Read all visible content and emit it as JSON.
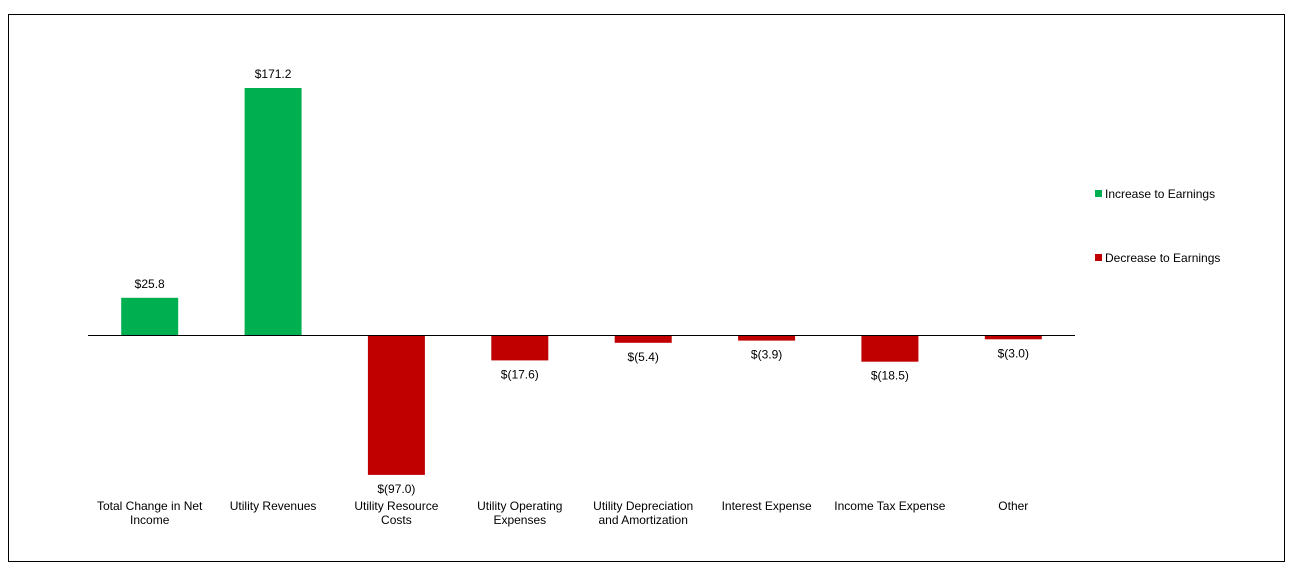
{
  "chart_data": {
    "type": "bar",
    "categories": [
      [
        "Total Change in Net",
        "Income"
      ],
      [
        "Utility Revenues"
      ],
      [
        "Utility Resource",
        "Costs"
      ],
      [
        "Utility Operating",
        "Expenses"
      ],
      [
        "Utility Depreciation",
        "and Amortization"
      ],
      [
        "Interest Expense"
      ],
      [
        "Income Tax Expense"
      ],
      [
        "Other"
      ]
    ],
    "values": [
      25.8,
      171.2,
      -97.0,
      -17.6,
      -5.4,
      -3.9,
      -18.5,
      -3.0
    ],
    "value_labels": [
      "$25.8",
      "$171.2",
      "$(97.0)",
      "$(17.6)",
      "$(5.4)",
      "$(3.9)",
      "$(18.5)",
      "$(3.0)"
    ],
    "series": [
      {
        "name": "Increase to Earnings",
        "color": "#00b050"
      },
      {
        "name": "Decrease to Earnings",
        "color": "#c00000"
      }
    ],
    "ylim": [
      -97.0,
      171.2
    ],
    "grid": false,
    "legend_position": "right",
    "title": "",
    "xlabel": "",
    "ylabel": ""
  }
}
